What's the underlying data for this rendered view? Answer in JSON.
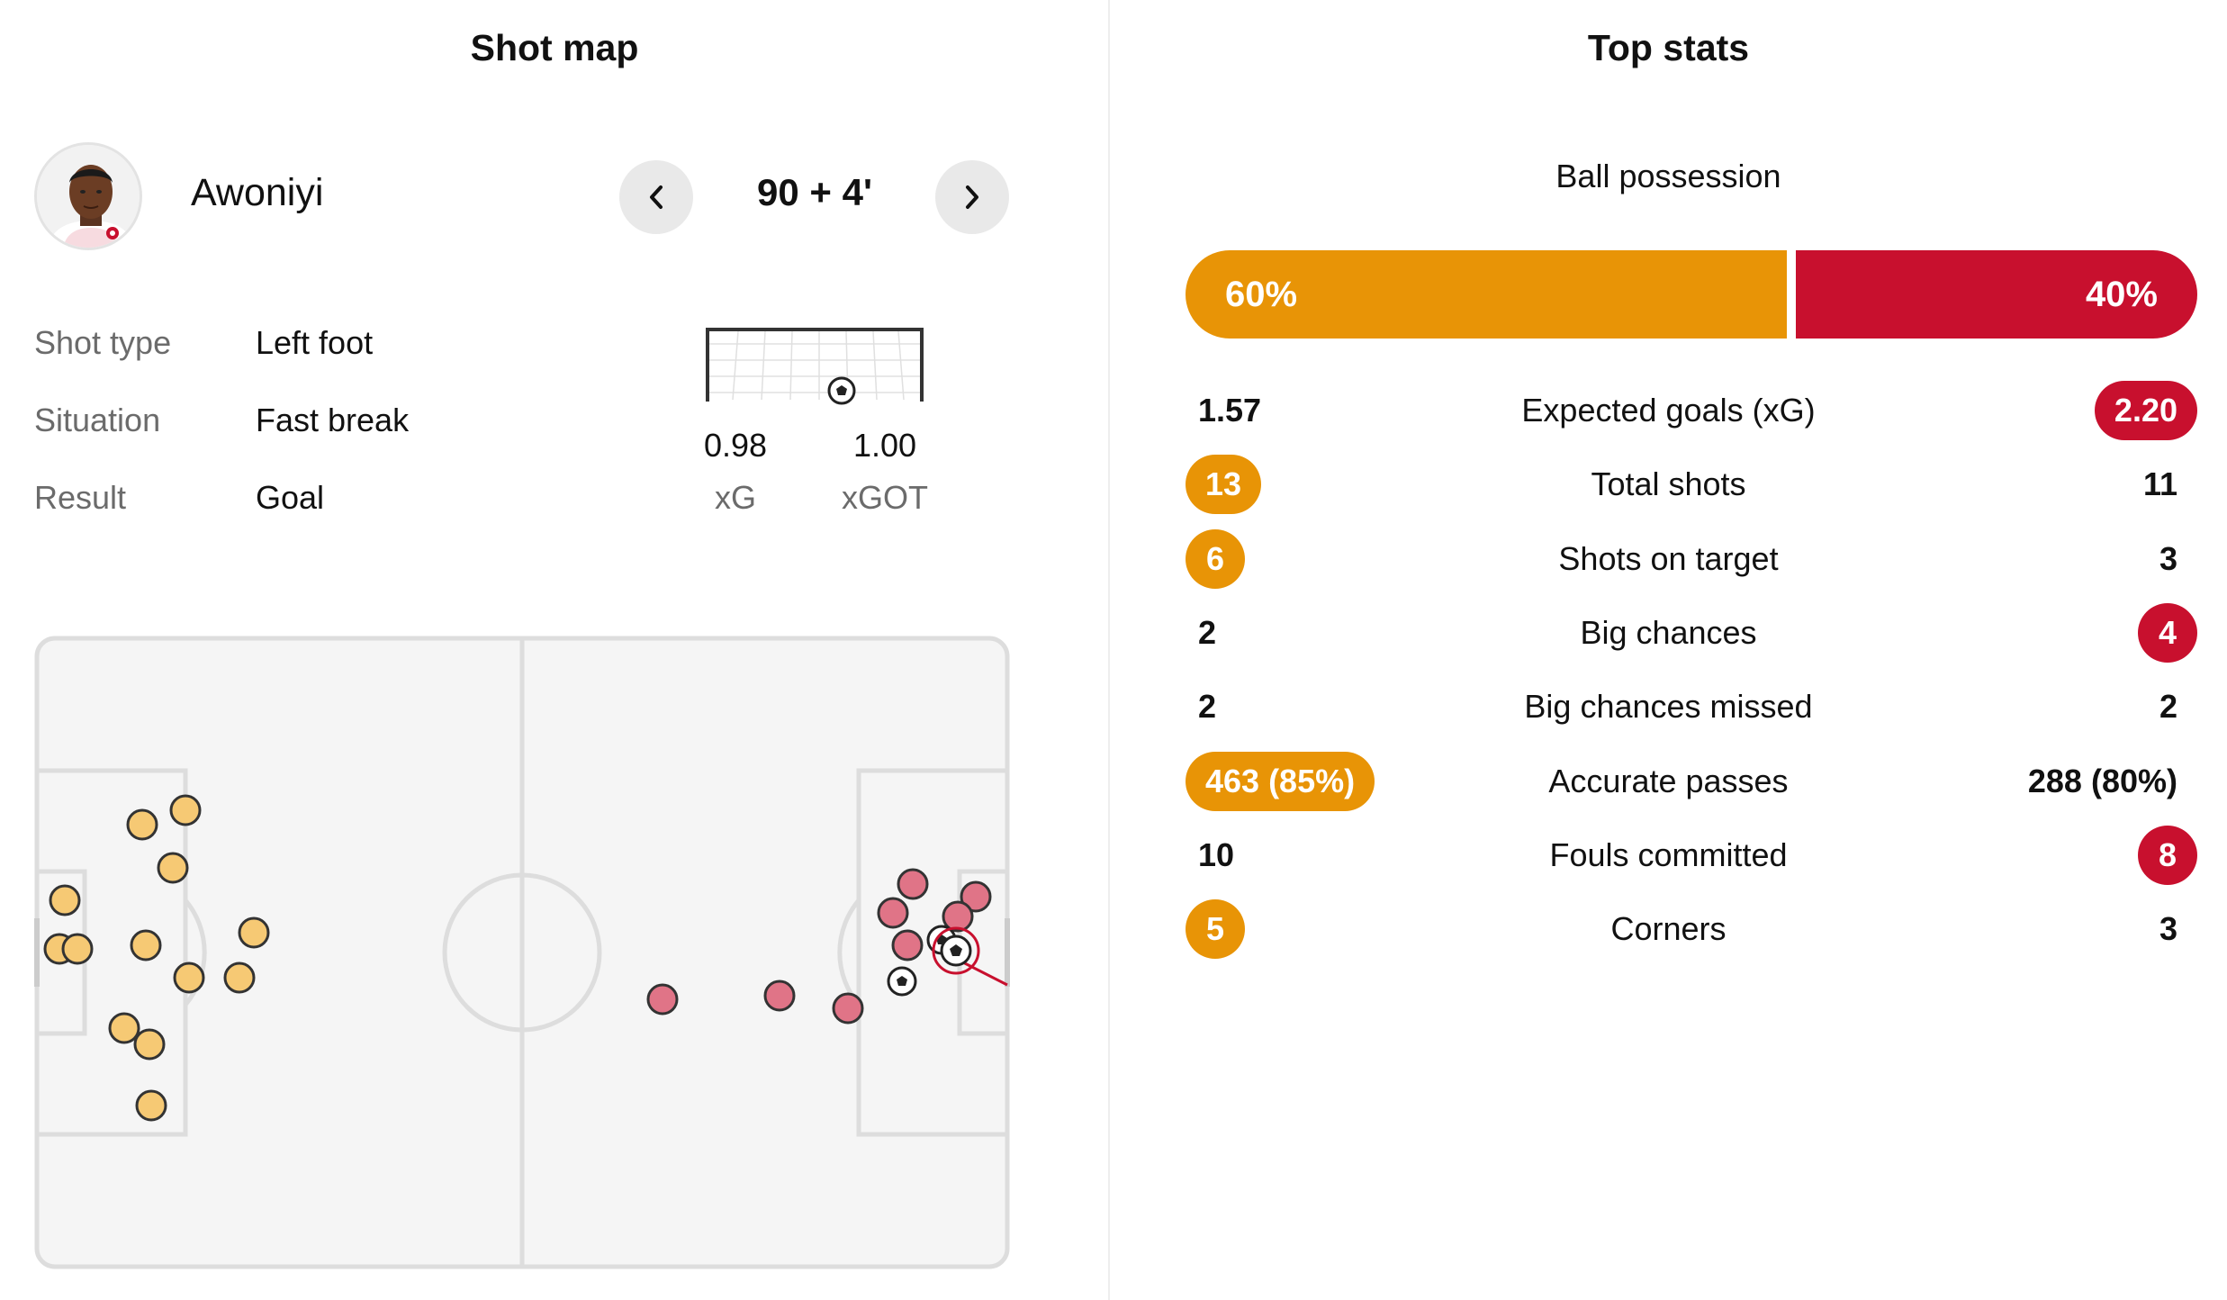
{
  "colors": {
    "home": "#e89406",
    "away": "#c8102e",
    "home_marker": "#f6c974",
    "away_marker": "#e07487",
    "pitch": "#f5f5f5",
    "lines": "#dddddd"
  },
  "shot_map": {
    "title": "Shot map",
    "player": {
      "name": "Awoniyi",
      "avatar_icon": "player-photo"
    },
    "minute": "90 + 4'",
    "details": [
      {
        "label": "Shot type",
        "value": "Left foot"
      },
      {
        "label": "Situation",
        "value": "Fast break"
      },
      {
        "label": "Result",
        "value": "Goal"
      }
    ],
    "xg": {
      "value": "0.98",
      "label": "xG"
    },
    "xgot": {
      "value": "1.00",
      "label": "xGOT"
    }
  },
  "top_stats": {
    "title": "Top stats",
    "possession": {
      "label": "Ball possession",
      "home": "60%",
      "away": "40%",
      "home_share": 0.6
    },
    "rows": [
      {
        "label": "Expected goals (xG)",
        "home": "1.57",
        "away": "2.20",
        "highlight": "away"
      },
      {
        "label": "Total shots",
        "home": "13",
        "away": "11",
        "highlight": "home"
      },
      {
        "label": "Shots on target",
        "home": "6",
        "away": "3",
        "highlight": "home"
      },
      {
        "label": "Big chances",
        "home": "2",
        "away": "4",
        "highlight": "away"
      },
      {
        "label": "Big chances missed",
        "home": "2",
        "away": "2",
        "highlight": "none"
      },
      {
        "label": "Accurate passes",
        "home": "463 (85%)",
        "away": "288 (80%)",
        "highlight": "home"
      },
      {
        "label": "Fouls committed",
        "home": "10",
        "away": "8",
        "highlight": "away"
      },
      {
        "label": "Corners",
        "home": "5",
        "away": "3",
        "highlight": "home"
      }
    ]
  }
}
